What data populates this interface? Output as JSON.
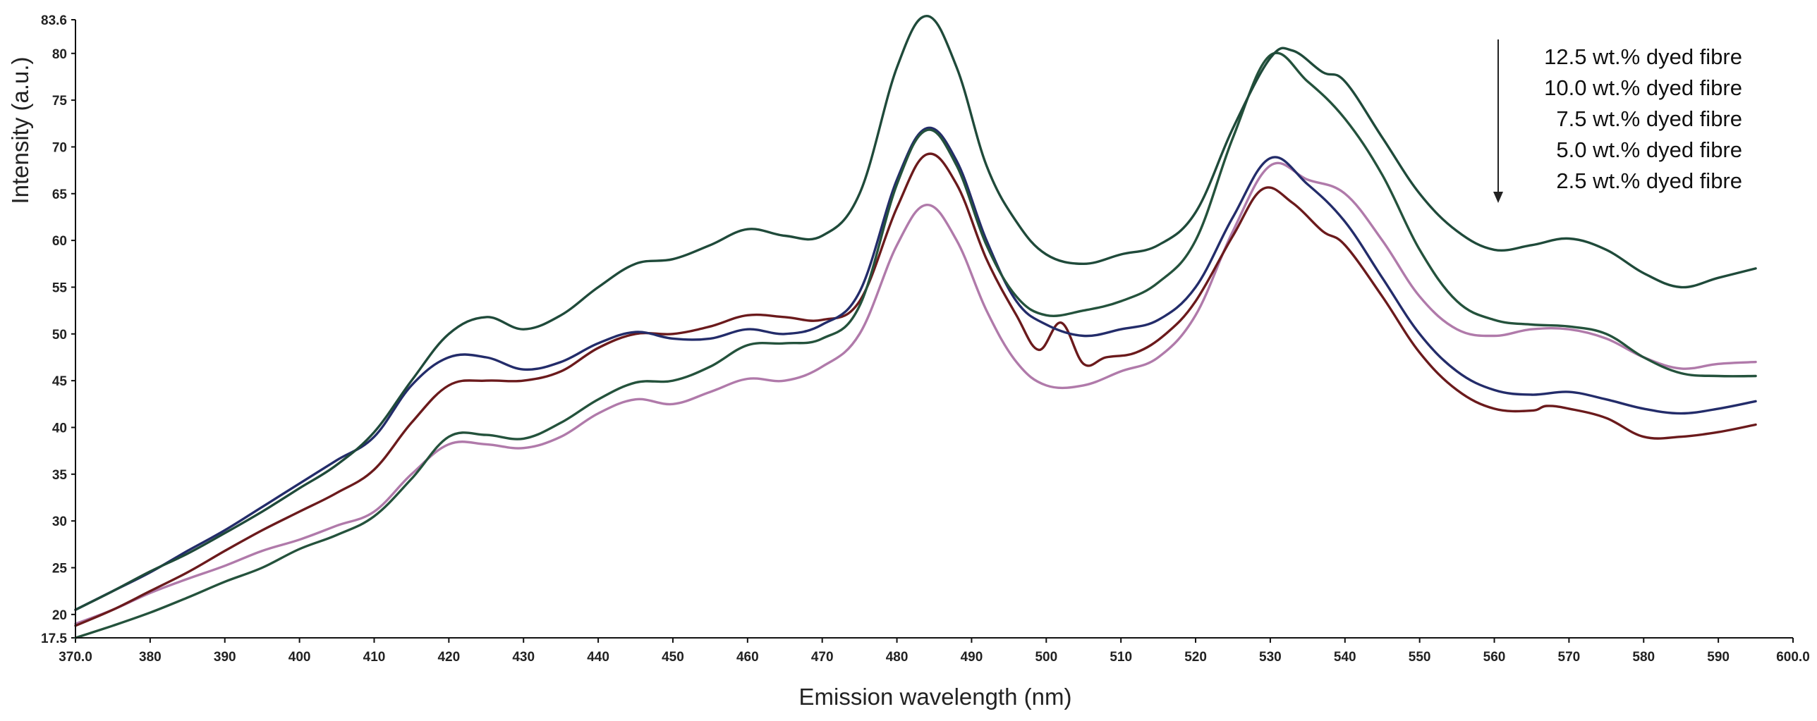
{
  "chart_data": {
    "type": "line",
    "title": "",
    "xlabel": "Emission wavelength (nm)",
    "ylabel": "Intensity (a.u.)",
    "xlim": [
      370.0,
      600.0
    ],
    "ylim": [
      17.5,
      83.6
    ],
    "x_ticks": [
      {
        "value": 370,
        "label": "370.0"
      },
      {
        "value": 380,
        "label": "380"
      },
      {
        "value": 390,
        "label": "390"
      },
      {
        "value": 400,
        "label": "400"
      },
      {
        "value": 410,
        "label": "410"
      },
      {
        "value": 420,
        "label": "420"
      },
      {
        "value": 430,
        "label": "430"
      },
      {
        "value": 440,
        "label": "440"
      },
      {
        "value": 450,
        "label": "450"
      },
      {
        "value": 460,
        "label": "460"
      },
      {
        "value": 470,
        "label": "470"
      },
      {
        "value": 480,
        "label": "480"
      },
      {
        "value": 490,
        "label": "490"
      },
      {
        "value": 500,
        "label": "500"
      },
      {
        "value": 510,
        "label": "510"
      },
      {
        "value": 520,
        "label": "520"
      },
      {
        "value": 530,
        "label": "530"
      },
      {
        "value": 540,
        "label": "540"
      },
      {
        "value": 550,
        "label": "550"
      },
      {
        "value": 560,
        "label": "560"
      },
      {
        "value": 570,
        "label": "570"
      },
      {
        "value": 580,
        "label": "580"
      },
      {
        "value": 590,
        "label": "590"
      },
      {
        "value": 600,
        "label": "600.0"
      }
    ],
    "y_ticks": [
      {
        "value": 17.5,
        "label": "17.5"
      },
      {
        "value": 20,
        "label": "20"
      },
      {
        "value": 25,
        "label": "25"
      },
      {
        "value": 30,
        "label": "30"
      },
      {
        "value": 35,
        "label": "35"
      },
      {
        "value": 40,
        "label": "40"
      },
      {
        "value": 45,
        "label": "45"
      },
      {
        "value": 50,
        "label": "50"
      },
      {
        "value": 55,
        "label": "55"
      },
      {
        "value": 60,
        "label": "60"
      },
      {
        "value": 65,
        "label": "65"
      },
      {
        "value": 70,
        "label": "70"
      },
      {
        "value": 75,
        "label": "75"
      },
      {
        "value": 80,
        "label": "80"
      },
      {
        "value": 83.6,
        "label": "83.6"
      }
    ],
    "grid": false,
    "legend": {
      "position": "top-right",
      "arrow": "down",
      "entries": [
        "12.5 wt.% dyed fibre",
        "10.0 wt.% dyed fibre",
        "7.5 wt.% dyed fibre",
        "5.0 wt.% dyed fibre",
        "2.5 wt.% dyed fibre"
      ]
    },
    "series": [
      {
        "name": "12.5 wt.% dyed fibre",
        "color": "#1f4a3a",
        "points": [
          [
            370,
            20.5
          ],
          [
            375,
            22.5
          ],
          [
            380,
            24.6
          ],
          [
            385,
            26.5
          ],
          [
            390,
            28.7
          ],
          [
            395,
            31.0
          ],
          [
            400,
            33.5
          ],
          [
            405,
            36.0
          ],
          [
            410,
            39.5
          ],
          [
            415,
            45.0
          ],
          [
            420,
            50.0
          ],
          [
            425,
            51.8
          ],
          [
            430,
            50.5
          ],
          [
            435,
            52.0
          ],
          [
            440,
            55.0
          ],
          [
            445,
            57.5
          ],
          [
            450,
            58.0
          ],
          [
            455,
            59.5
          ],
          [
            460,
            61.2
          ],
          [
            465,
            60.5
          ],
          [
            470,
            60.5
          ],
          [
            475,
            65.0
          ],
          [
            480,
            78.5
          ],
          [
            484,
            84.0
          ],
          [
            488,
            78.5
          ],
          [
            492,
            68.0
          ],
          [
            496,
            62.0
          ],
          [
            500,
            58.5
          ],
          [
            505,
            57.5
          ],
          [
            510,
            58.5
          ],
          [
            515,
            59.5
          ],
          [
            520,
            63.0
          ],
          [
            525,
            72.0
          ],
          [
            530,
            79.5
          ],
          [
            533,
            80.3
          ],
          [
            537,
            78.0
          ],
          [
            540,
            77.0
          ],
          [
            545,
            71.0
          ],
          [
            550,
            65.0
          ],
          [
            555,
            61.0
          ],
          [
            560,
            59.0
          ],
          [
            565,
            59.5
          ],
          [
            570,
            60.2
          ],
          [
            575,
            59.0
          ],
          [
            580,
            56.5
          ],
          [
            585,
            55.0
          ],
          [
            590,
            56.0
          ],
          [
            595,
            57.0
          ]
        ]
      },
      {
        "name": "10.0 wt.% dyed fibre",
        "color": "#24523c",
        "points": [
          [
            370,
            17.5
          ],
          [
            375,
            18.8
          ],
          [
            380,
            20.2
          ],
          [
            385,
            21.8
          ],
          [
            390,
            23.5
          ],
          [
            395,
            25.0
          ],
          [
            400,
            27.0
          ],
          [
            405,
            28.5
          ],
          [
            410,
            30.5
          ],
          [
            415,
            34.5
          ],
          [
            420,
            39.0
          ],
          [
            425,
            39.2
          ],
          [
            430,
            38.8
          ],
          [
            435,
            40.5
          ],
          [
            440,
            43.0
          ],
          [
            445,
            44.8
          ],
          [
            450,
            45.0
          ],
          [
            455,
            46.5
          ],
          [
            460,
            48.8
          ],
          [
            465,
            49.0
          ],
          [
            470,
            49.5
          ],
          [
            475,
            53.0
          ],
          [
            480,
            66.0
          ],
          [
            484,
            71.8
          ],
          [
            488,
            68.0
          ],
          [
            492,
            59.5
          ],
          [
            496,
            54.0
          ],
          [
            500,
            52.0
          ],
          [
            505,
            52.5
          ],
          [
            510,
            53.5
          ],
          [
            515,
            55.5
          ],
          [
            520,
            60.0
          ],
          [
            525,
            71.0
          ],
          [
            530,
            79.8
          ],
          [
            535,
            77.0
          ],
          [
            540,
            73.0
          ],
          [
            545,
            67.0
          ],
          [
            550,
            59.0
          ],
          [
            555,
            53.5
          ],
          [
            560,
            51.5
          ],
          [
            565,
            51.0
          ],
          [
            570,
            50.8
          ],
          [
            575,
            50.0
          ],
          [
            580,
            47.5
          ],
          [
            585,
            45.8
          ],
          [
            590,
            45.5
          ],
          [
            595,
            45.5
          ]
        ]
      },
      {
        "name": "7.5 wt.% dyed fibre",
        "color": "#232c6a",
        "points": [
          [
            370,
            20.5
          ],
          [
            375,
            22.5
          ],
          [
            380,
            24.5
          ],
          [
            385,
            26.8
          ],
          [
            390,
            29.0
          ],
          [
            395,
            31.5
          ],
          [
            400,
            34.0
          ],
          [
            405,
            36.5
          ],
          [
            410,
            39.0
          ],
          [
            415,
            44.5
          ],
          [
            420,
            47.5
          ],
          [
            425,
            47.5
          ],
          [
            430,
            46.2
          ],
          [
            435,
            47.0
          ],
          [
            440,
            49.0
          ],
          [
            445,
            50.2
          ],
          [
            450,
            49.5
          ],
          [
            455,
            49.5
          ],
          [
            460,
            50.5
          ],
          [
            465,
            50.0
          ],
          [
            470,
            51.0
          ],
          [
            475,
            54.5
          ],
          [
            480,
            66.5
          ],
          [
            484,
            72.0
          ],
          [
            488,
            68.5
          ],
          [
            492,
            60.0
          ],
          [
            496,
            53.5
          ],
          [
            500,
            51.0
          ],
          [
            505,
            49.8
          ],
          [
            510,
            50.5
          ],
          [
            515,
            51.5
          ],
          [
            520,
            55.0
          ],
          [
            525,
            62.5
          ],
          [
            530,
            68.8
          ],
          [
            535,
            66.0
          ],
          [
            540,
            62.0
          ],
          [
            545,
            56.0
          ],
          [
            550,
            50.0
          ],
          [
            555,
            46.0
          ],
          [
            560,
            44.0
          ],
          [
            565,
            43.5
          ],
          [
            570,
            43.8
          ],
          [
            575,
            43.0
          ],
          [
            580,
            42.0
          ],
          [
            585,
            41.5
          ],
          [
            590,
            42.0
          ],
          [
            595,
            42.8
          ]
        ]
      },
      {
        "name": "5.0 wt.% dyed fibre",
        "color": "#6b1a1c",
        "points": [
          [
            370,
            18.8
          ],
          [
            375,
            20.5
          ],
          [
            380,
            22.5
          ],
          [
            385,
            24.5
          ],
          [
            390,
            26.8
          ],
          [
            395,
            29.0
          ],
          [
            400,
            31.0
          ],
          [
            405,
            33.0
          ],
          [
            410,
            35.5
          ],
          [
            415,
            40.5
          ],
          [
            420,
            44.5
          ],
          [
            425,
            45.0
          ],
          [
            430,
            45.0
          ],
          [
            435,
            46.0
          ],
          [
            440,
            48.5
          ],
          [
            445,
            50.0
          ],
          [
            450,
            50.0
          ],
          [
            455,
            50.8
          ],
          [
            460,
            52.0
          ],
          [
            465,
            51.8
          ],
          [
            470,
            51.5
          ],
          [
            475,
            53.5
          ],
          [
            480,
            63.5
          ],
          [
            484,
            69.2
          ],
          [
            488,
            66.0
          ],
          [
            492,
            58.0
          ],
          [
            496,
            52.0
          ],
          [
            499,
            48.3
          ],
          [
            502,
            51.2
          ],
          [
            505,
            46.8
          ],
          [
            508,
            47.5
          ],
          [
            512,
            48.0
          ],
          [
            516,
            50.0
          ],
          [
            520,
            53.5
          ],
          [
            525,
            60.5
          ],
          [
            529,
            65.5
          ],
          [
            533,
            64.0
          ],
          [
            537,
            61.0
          ],
          [
            540,
            59.5
          ],
          [
            545,
            54.0
          ],
          [
            550,
            48.0
          ],
          [
            555,
            44.0
          ],
          [
            560,
            42.0
          ],
          [
            565,
            41.8
          ],
          [
            567,
            42.3
          ],
          [
            570,
            42.0
          ],
          [
            575,
            41.0
          ],
          [
            580,
            39.0
          ],
          [
            585,
            39.0
          ],
          [
            590,
            39.5
          ],
          [
            595,
            40.3
          ]
        ]
      },
      {
        "name": "2.5 wt.% dyed fibre",
        "color": "#b07aaa",
        "points": [
          [
            370,
            19.0
          ],
          [
            375,
            20.5
          ],
          [
            380,
            22.3
          ],
          [
            385,
            23.8
          ],
          [
            390,
            25.2
          ],
          [
            395,
            26.8
          ],
          [
            400,
            28.0
          ],
          [
            405,
            29.5
          ],
          [
            410,
            31.0
          ],
          [
            415,
            35.0
          ],
          [
            420,
            38.2
          ],
          [
            425,
            38.2
          ],
          [
            430,
            37.8
          ],
          [
            435,
            39.0
          ],
          [
            440,
            41.5
          ],
          [
            445,
            43.0
          ],
          [
            450,
            42.5
          ],
          [
            455,
            43.8
          ],
          [
            460,
            45.2
          ],
          [
            465,
            45.0
          ],
          [
            470,
            46.5
          ],
          [
            475,
            50.0
          ],
          [
            480,
            59.5
          ],
          [
            484,
            63.8
          ],
          [
            488,
            60.0
          ],
          [
            492,
            52.5
          ],
          [
            496,
            47.0
          ],
          [
            500,
            44.5
          ],
          [
            505,
            44.5
          ],
          [
            510,
            46.0
          ],
          [
            515,
            47.5
          ],
          [
            520,
            52.0
          ],
          [
            525,
            61.0
          ],
          [
            530,
            68.0
          ],
          [
            535,
            66.5
          ],
          [
            540,
            65.0
          ],
          [
            545,
            60.0
          ],
          [
            550,
            54.0
          ],
          [
            555,
            50.5
          ],
          [
            560,
            49.8
          ],
          [
            565,
            50.5
          ],
          [
            570,
            50.5
          ],
          [
            575,
            49.5
          ],
          [
            580,
            47.5
          ],
          [
            585,
            46.3
          ],
          [
            590,
            46.8
          ],
          [
            595,
            47.0
          ]
        ]
      }
    ]
  }
}
